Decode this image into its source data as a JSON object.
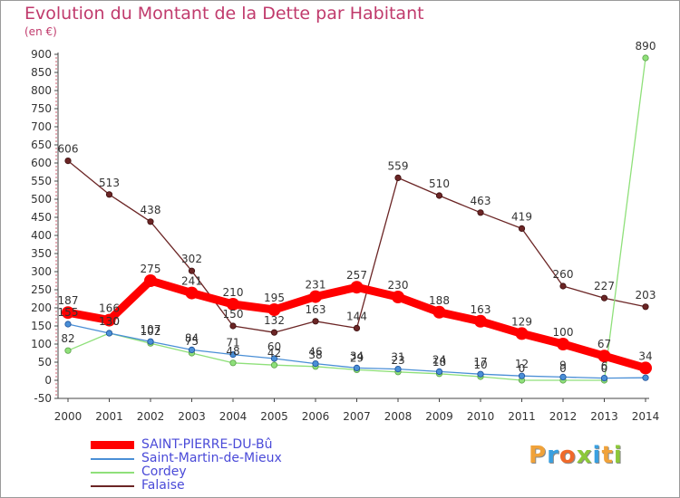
{
  "title": "Evolution du Montant de la Dette par Habitant",
  "unit_label": "(en €)",
  "chart_data": {
    "type": "line",
    "x": [
      "2000",
      "2001",
      "2002",
      "2003",
      "2004",
      "2005",
      "2006",
      "2007",
      "2008",
      "2009",
      "2010",
      "2011",
      "2012",
      "2013",
      "2014"
    ],
    "ylim": [
      -50,
      900
    ],
    "yticks": [
      -50,
      0,
      50,
      100,
      150,
      200,
      250,
      300,
      350,
      400,
      450,
      500,
      550,
      600,
      650,
      700,
      750,
      800,
      850,
      900
    ],
    "grid": false,
    "legend_position": "bottom-left",
    "series": [
      {
        "name": "SAINT-PIERRE-DU-Bû",
        "color": "#ff0000",
        "values": [
          187,
          166,
          275,
          241,
          210,
          195,
          231,
          257,
          230,
          188,
          163,
          129,
          100,
          67,
          34
        ],
        "labels": [
          "187",
          "166",
          "275",
          "241",
          "210",
          "195",
          "231",
          "257",
          "230",
          "188",
          "163",
          "129",
          "100",
          "67",
          "34"
        ]
      },
      {
        "name": "Saint-Martin-de-Mieux",
        "color": "#4a8fd6",
        "values": [
          155,
          130,
          107,
          84,
          71,
          60,
          46,
          34,
          31,
          24,
          17,
          12,
          9,
          6,
          7
        ],
        "labels": [
          "155",
          "130",
          "107",
          "84",
          "71",
          "60",
          "46",
          "34",
          "31",
          "24",
          "17",
          "12",
          "9",
          "6",
          ""
        ]
      },
      {
        "name": "Cordey",
        "color": "#8fe07a",
        "values": [
          82,
          130,
          102,
          75,
          48,
          42,
          38,
          29,
          23,
          18,
          10,
          0,
          0,
          0,
          890
        ],
        "labels": [
          "82",
          "130",
          "102",
          "75",
          "48",
          "42",
          "38",
          "29",
          "23",
          "18",
          "10",
          "0",
          "0",
          "0",
          "890"
        ]
      },
      {
        "name": "Falaise",
        "color": "#6b2525",
        "values": [
          606,
          513,
          438,
          302,
          150,
          132,
          163,
          144,
          559,
          510,
          463,
          419,
          260,
          227,
          203
        ],
        "labels": [
          "606",
          "513",
          "438",
          "302",
          "150",
          "132",
          "163",
          "144",
          "559",
          "510",
          "463",
          "419",
          "260",
          "227",
          "203"
        ]
      }
    ]
  },
  "logo": {
    "letters": [
      "P",
      "r",
      "o",
      "x",
      "i",
      "t",
      "i"
    ],
    "colors": [
      "#f0a23a",
      "#3aa0e0",
      "#f06a2a",
      "#8cc83a",
      "#3aa0e0",
      "#f0a23a",
      "#8cc83a"
    ]
  }
}
